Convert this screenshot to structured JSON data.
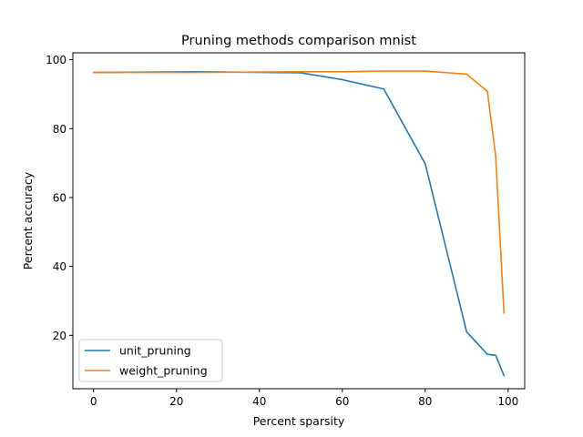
{
  "chart_data": {
    "type": "line",
    "title": "Pruning methods comparison mnist",
    "xlabel": "Percent sparsity",
    "ylabel": "Percent accuracy",
    "xlim": [
      -5,
      104
    ],
    "ylim": [
      4.5,
      102
    ],
    "xticks": [
      0,
      20,
      40,
      60,
      80,
      100
    ],
    "yticks": [
      20,
      40,
      60,
      80,
      100
    ],
    "grid": false,
    "legend": "lower-left",
    "series": [
      {
        "name": "unit_pruning",
        "color": "#1f77b4",
        "x": [
          0,
          25,
          50,
          60,
          70,
          80,
          90,
          95,
          97,
          99
        ],
        "y": [
          96.3,
          96.5,
          96.2,
          94.2,
          91.5,
          69.8,
          21.0,
          14.5,
          14.2,
          8.3
        ]
      },
      {
        "name": "weight_pruning",
        "color": "#ff7f0e",
        "x": [
          0,
          25,
          50,
          60,
          70,
          80,
          90,
          95,
          97,
          99
        ],
        "y": [
          96.3,
          96.3,
          96.5,
          96.5,
          96.7,
          96.7,
          95.8,
          90.8,
          72.0,
          26.5
        ]
      }
    ]
  }
}
